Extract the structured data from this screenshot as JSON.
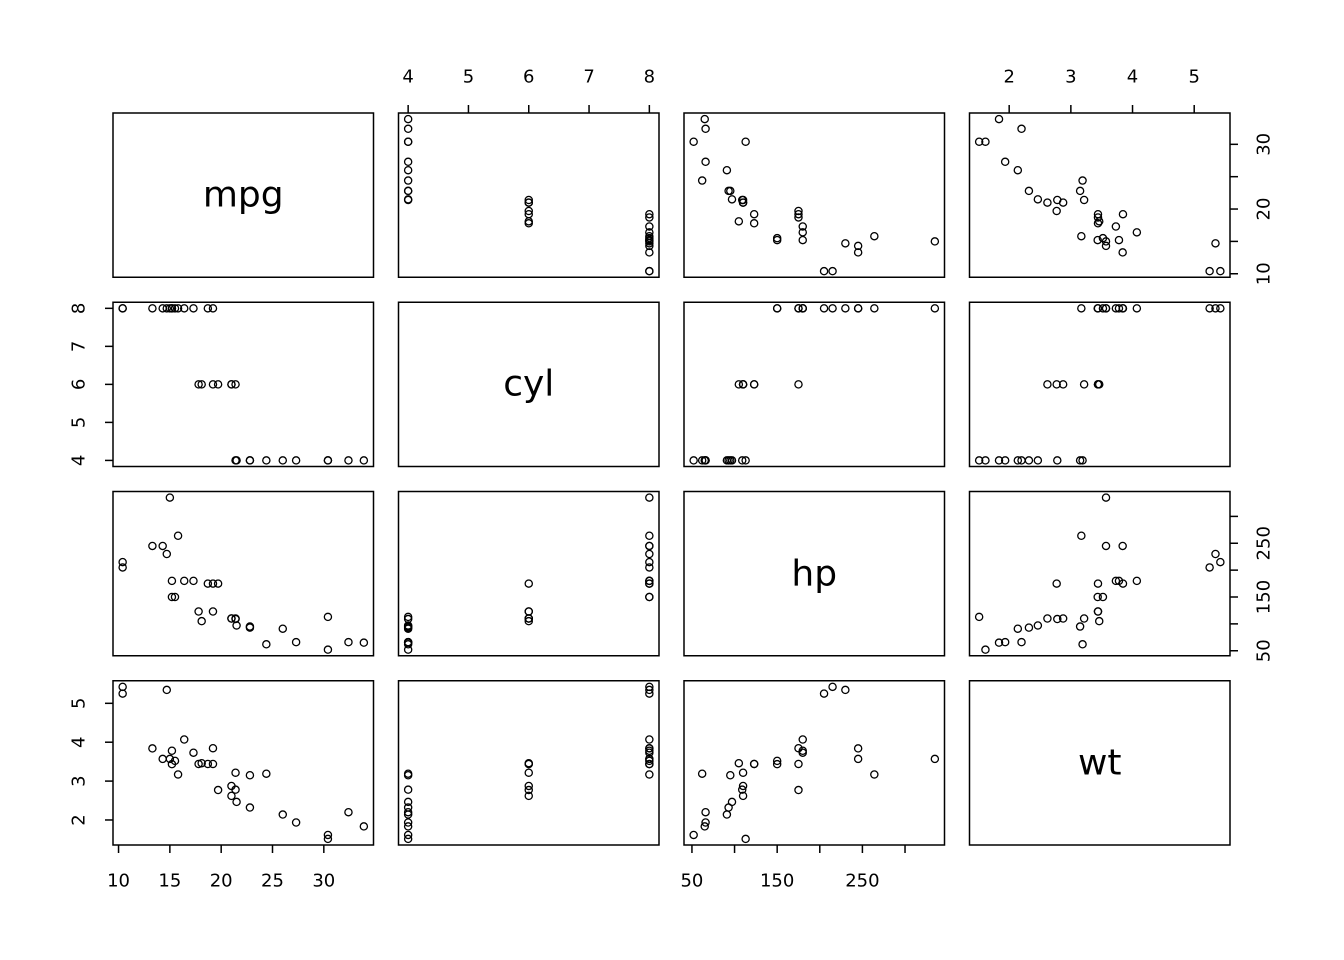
{
  "figure": {
    "background_color": "#ffffff",
    "foreground_color": "#000000"
  },
  "chart_data": {
    "type": "scatter",
    "subtype": "scatterplot-matrix-pairs",
    "title": "",
    "variables": [
      "mpg",
      "cyl",
      "hp",
      "wt"
    ],
    "n_points": 32,
    "points": {
      "mpg": [
        21.0,
        21.0,
        22.8,
        21.4,
        18.7,
        18.1,
        14.3,
        24.4,
        22.8,
        19.2,
        17.8,
        16.4,
        17.3,
        15.2,
        10.4,
        10.4,
        14.7,
        32.4,
        30.4,
        33.9,
        21.5,
        15.5,
        15.2,
        13.3,
        19.2,
        27.3,
        26.0,
        30.4,
        15.8,
        19.7,
        15.0,
        21.4
      ],
      "cyl": [
        6,
        6,
        4,
        6,
        8,
        6,
        8,
        4,
        4,
        6,
        6,
        8,
        8,
        8,
        8,
        8,
        8,
        4,
        4,
        4,
        4,
        8,
        8,
        8,
        8,
        4,
        4,
        4,
        8,
        6,
        8,
        4
      ],
      "hp": [
        110,
        110,
        93,
        110,
        175,
        105,
        245,
        62,
        95,
        123,
        123,
        180,
        180,
        180,
        205,
        215,
        230,
        66,
        52,
        65,
        97,
        150,
        150,
        245,
        175,
        66,
        91,
        113,
        264,
        175,
        335,
        109
      ],
      "wt": [
        2.62,
        2.875,
        2.32,
        3.215,
        3.44,
        3.46,
        3.57,
        3.19,
        3.15,
        3.44,
        3.44,
        4.07,
        3.73,
        3.78,
        5.25,
        5.424,
        5.345,
        2.2,
        1.615,
        1.835,
        2.465,
        3.52,
        3.435,
        3.84,
        3.845,
        1.935,
        2.14,
        1.513,
        3.17,
        2.77,
        3.57,
        2.78
      ]
    },
    "ticks": {
      "mpg": {
        "values": [
          10,
          15,
          20,
          25,
          30
        ],
        "x_labels": [
          10,
          15,
          20,
          25,
          30
        ],
        "y_labels": [
          10,
          20,
          30
        ]
      },
      "cyl": {
        "values": [
          4,
          5,
          6,
          7,
          8
        ],
        "x_labels": [
          4,
          5,
          6,
          7,
          8
        ],
        "y_labels": [
          4,
          5,
          6,
          7,
          8
        ]
      },
      "hp": {
        "values": [
          50,
          100,
          150,
          200,
          250,
          300
        ],
        "x_labels": [
          50,
          150,
          250
        ],
        "y_labels": [
          50,
          150,
          250
        ]
      },
      "wt": {
        "values": [
          2,
          3,
          4,
          5
        ],
        "x_labels": [
          2,
          3,
          4,
          5
        ],
        "y_labels": [
          2,
          3,
          4,
          5
        ]
      }
    },
    "axis_layout": {
      "rows": 4,
      "cols": 4,
      "x_axis_side_by_col": [
        "bottom",
        "top",
        "bottom",
        "top"
      ],
      "y_axis_side_by_row": [
        "right",
        "left",
        "right",
        "left"
      ],
      "grid": false,
      "legend": "none",
      "point_marker": "open-circle",
      "range_padding_fraction": 0.04
    }
  }
}
